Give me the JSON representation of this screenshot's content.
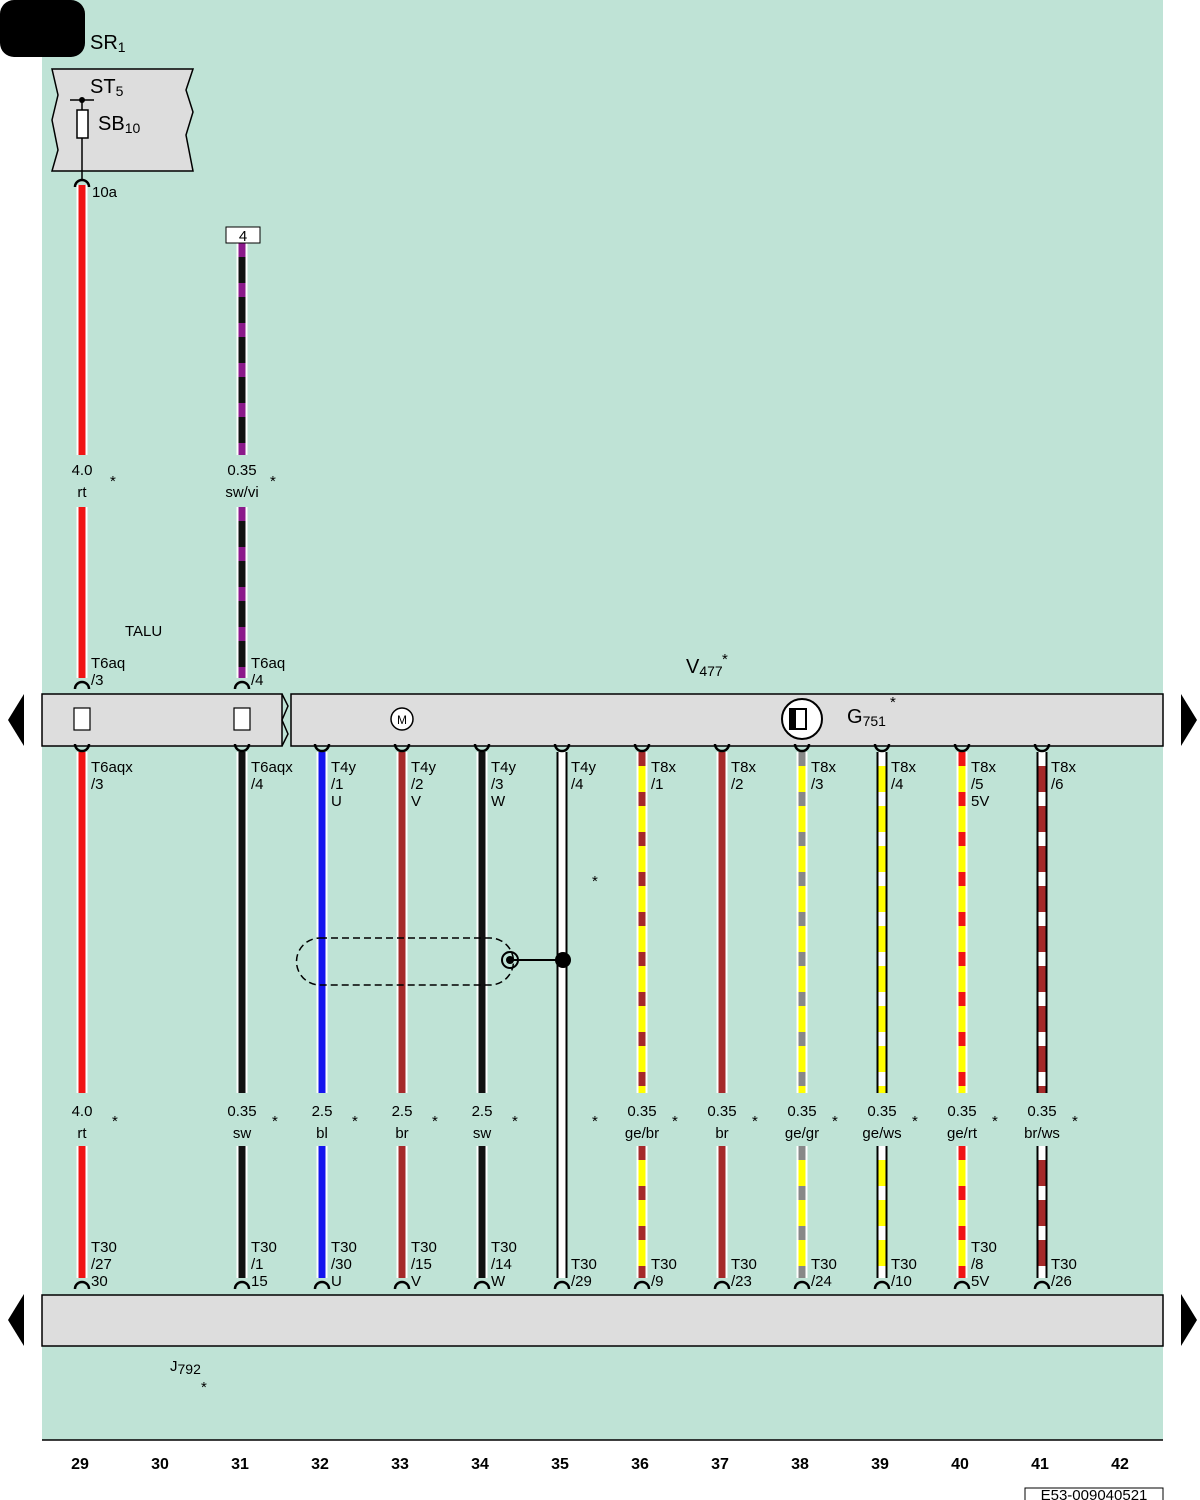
{
  "components": [
    {
      "name": "SR",
      "sub": "1"
    },
    {
      "name": "ST",
      "sub": "5"
    },
    {
      "name": "SB",
      "sub": "10"
    },
    {
      "name": "V",
      "sub": "477",
      "note": "*"
    },
    {
      "name": "G",
      "sub": "751",
      "note": "*"
    },
    {
      "name": "J",
      "sub": "792",
      "note": "*"
    }
  ],
  "labels": {
    "pin": "10a",
    "box": "4",
    "talu": "TALU",
    "motor": "M"
  },
  "columns": [
    "29",
    "30",
    "31",
    "32",
    "33",
    "34",
    "35",
    "36",
    "37",
    "38",
    "39",
    "40",
    "41",
    "42"
  ],
  "upper_wires": [
    {
      "size": "4.0",
      "code": "rt",
      "note": "*",
      "connector": [
        "T6aq",
        "/3"
      ],
      "colors": [
        "#f01414"
      ]
    },
    null,
    {
      "size": "0.35",
      "code": "sw/vi",
      "note": "*",
      "connector": [
        "T6aq",
        "/4"
      ],
      "colors": [
        "#111111",
        "#8b1a8b"
      ]
    },
    null,
    null,
    null,
    null,
    null,
    null,
    null,
    null,
    null,
    null,
    null
  ],
  "lower_wires": [
    {
      "top": [
        "T6aqx",
        "/3"
      ],
      "size": "4.0",
      "code": "rt",
      "notes": [
        "*"
      ],
      "bottom": [
        "T30",
        "/27",
        "30"
      ],
      "colors": [
        "#f01414"
      ]
    },
    null,
    {
      "top": [
        "T6aqx",
        "/4"
      ],
      "size": "0.35",
      "code": "sw",
      "notes": [
        "*"
      ],
      "bottom": [
        "T30",
        "/1",
        "15"
      ],
      "colors": [
        "#111111"
      ]
    },
    {
      "top": [
        "T4y",
        "/1",
        "U"
      ],
      "size": "2.5",
      "code": "bl",
      "notes": [
        "*"
      ],
      "bottom": [
        "T30",
        "/30",
        "U"
      ],
      "colors": [
        "#1414ee"
      ]
    },
    {
      "top": [
        "T4y",
        "/2",
        "V"
      ],
      "size": "2.5",
      "code": "br",
      "notes": [
        "*"
      ],
      "bottom": [
        "T30",
        "/15",
        "V"
      ],
      "colors": [
        "#a52a2a"
      ]
    },
    {
      "top": [
        "T4y",
        "/3",
        "W"
      ],
      "size": "2.5",
      "code": "sw",
      "notes": [
        "*"
      ],
      "bottom": [
        "T30",
        "/14",
        "W"
      ],
      "colors": [
        "#111111"
      ]
    },
    {
      "top": [
        "T4y",
        "/4"
      ],
      "notes": [
        "*",
        "*"
      ],
      "bottom": [
        "T30",
        "/29"
      ],
      "colors": [
        "#ffffff"
      ]
    },
    {
      "top": [
        "T8x",
        "/1"
      ],
      "size": "0.35",
      "code": "ge/br",
      "notes": [
        "*"
      ],
      "bottom": [
        "T30",
        "/9"
      ],
      "colors": [
        "#ffff00",
        "#a52a2a"
      ]
    },
    {
      "top": [
        "T8x",
        "/2"
      ],
      "size": "0.35",
      "code": "br",
      "notes": [
        "*"
      ],
      "bottom": [
        "T30",
        "/23"
      ],
      "colors": [
        "#a52a2a"
      ]
    },
    {
      "top": [
        "T8x",
        "/3"
      ],
      "size": "0.35",
      "code": "ge/gr",
      "notes": [
        "*"
      ],
      "bottom": [
        "T30",
        "/24"
      ],
      "colors": [
        "#ffff00",
        "#888888"
      ]
    },
    {
      "top": [
        "T8x",
        "/4"
      ],
      "size": "0.35",
      "code": "ge/ws",
      "notes": [
        "*"
      ],
      "bottom": [
        "T30",
        "/10"
      ],
      "colors": [
        "#ffff00",
        "#ffffff"
      ]
    },
    {
      "top": [
        "T8x",
        "/5",
        "5V"
      ],
      "size": "0.35",
      "code": "ge/rt",
      "notes": [
        "*"
      ],
      "bottom": [
        "T30",
        "/8",
        "5V"
      ],
      "colors": [
        "#ffff00",
        "#f01414"
      ]
    },
    {
      "top": [
        "T8x",
        "/6"
      ],
      "size": "0.35",
      "code": "br/ws",
      "notes": [
        "*"
      ],
      "bottom": [
        "T30",
        "/26"
      ],
      "colors": [
        "#a52a2a",
        "#ffffff"
      ]
    },
    null
  ],
  "footer": {
    "code": "E53-009040521"
  }
}
